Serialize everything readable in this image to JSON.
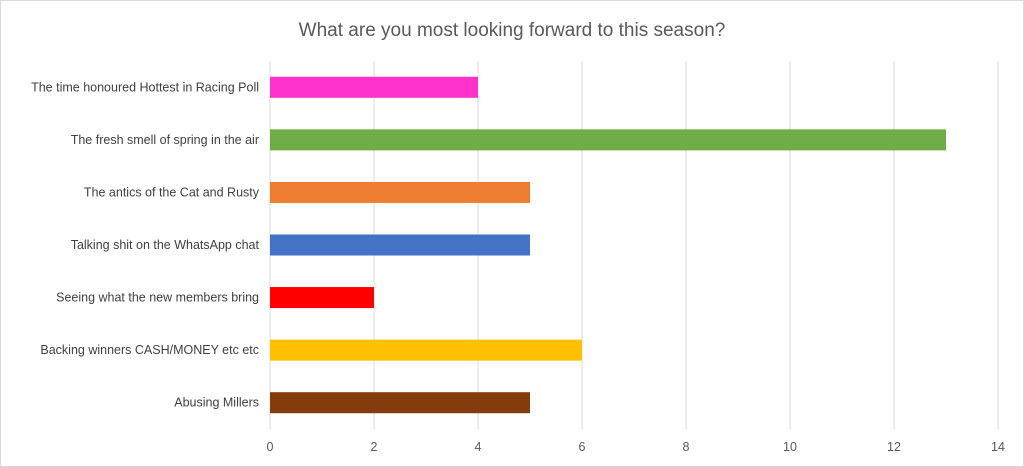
{
  "chart_data": {
    "type": "bar",
    "orientation": "horizontal",
    "title": "What are you most looking forward to this season?",
    "xlabel": "",
    "ylabel": "",
    "xlim": [
      0,
      14
    ],
    "x_ticks": [
      0,
      2,
      4,
      6,
      8,
      10,
      12,
      14
    ],
    "grid": true,
    "legend": "none",
    "categories": [
      "The time honoured Hottest in Racing Poll",
      "The fresh smell of spring in the air",
      "The antics of the Cat and Rusty",
      "Talking shit on the WhatsApp chat",
      "Seeing what the new members bring",
      "Backing winners CASH/MONEY etc etc",
      "Abusing Millers"
    ],
    "values": [
      4,
      13,
      5,
      5,
      2,
      6,
      5
    ],
    "colors": [
      "#ff33cc",
      "#70ad47",
      "#ed7d31",
      "#4472c4",
      "#ff0000",
      "#ffc000",
      "#843c0c"
    ]
  }
}
